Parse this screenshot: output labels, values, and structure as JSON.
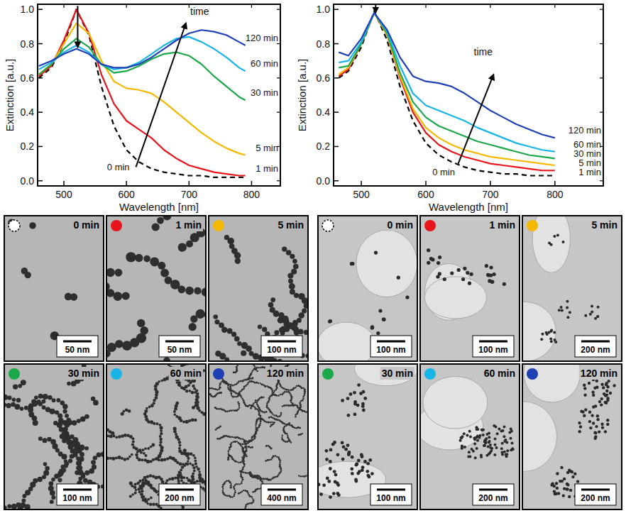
{
  "chart_data": [
    {
      "type": "line",
      "xlabel": "Wavelength [nm]",
      "ylabel": "Extinction [a.u.]",
      "xlim": [
        458,
        846
      ],
      "ylim": [
        -0.03,
        1.03
      ],
      "xticks": [
        500,
        600,
        700,
        800
      ],
      "yticks": [
        {
          "value": 0,
          "label": "0.0"
        },
        0.2,
        0.4,
        0.6,
        0.8,
        {
          "value": 1,
          "label": "1.0"
        }
      ],
      "annotations": [
        "time"
      ],
      "x": [
        460,
        480,
        500,
        520,
        540,
        560,
        580,
        600,
        620,
        640,
        660,
        680,
        700,
        720,
        740,
        760,
        780,
        790
      ],
      "series": [
        {
          "name": "0 min",
          "color": "#000000",
          "line_style": "dashed",
          "values": [
            0.6,
            0.66,
            0.8,
            1.0,
            0.85,
            0.55,
            0.32,
            0.18,
            0.11,
            0.07,
            0.05,
            0.04,
            0.03,
            0.03,
            0.02,
            0.02,
            0.02,
            0.02
          ]
        },
        {
          "name": "1 min",
          "color": "#e8141c",
          "line_style": "solid",
          "values": [
            0.61,
            0.67,
            0.82,
            1.0,
            0.86,
            0.62,
            0.45,
            0.35,
            0.3,
            0.25,
            0.18,
            0.13,
            0.09,
            0.07,
            0.05,
            0.04,
            0.03,
            0.03
          ]
        },
        {
          "name": "5 min",
          "color": "#f5b800",
          "line_style": "solid",
          "values": [
            0.62,
            0.68,
            0.8,
            0.92,
            0.86,
            0.7,
            0.58,
            0.54,
            0.53,
            0.51,
            0.46,
            0.4,
            0.34,
            0.28,
            0.23,
            0.19,
            0.16,
            0.15
          ]
        },
        {
          "name": "30 min",
          "color": "#1aa84a",
          "line_style": "solid",
          "values": [
            0.62,
            0.68,
            0.77,
            0.83,
            0.78,
            0.68,
            0.63,
            0.64,
            0.67,
            0.71,
            0.74,
            0.75,
            0.73,
            0.68,
            0.61,
            0.55,
            0.49,
            0.47
          ]
        },
        {
          "name": "60 min",
          "color": "#19b5e6",
          "line_style": "solid",
          "values": [
            0.65,
            0.69,
            0.75,
            0.79,
            0.75,
            0.68,
            0.65,
            0.66,
            0.69,
            0.74,
            0.79,
            0.83,
            0.84,
            0.81,
            0.77,
            0.72,
            0.66,
            0.64
          ]
        },
        {
          "name": "120 min",
          "color": "#1f3fb5",
          "line_style": "solid",
          "values": [
            0.67,
            0.7,
            0.74,
            0.77,
            0.74,
            0.68,
            0.66,
            0.66,
            0.68,
            0.72,
            0.77,
            0.82,
            0.86,
            0.88,
            0.87,
            0.85,
            0.81,
            0.79
          ]
        }
      ]
    },
    {
      "type": "line",
      "xlabel": "Wavelength [nm]",
      "ylabel": "Extinction [a.u.]",
      "xlim": [
        457,
        875
      ],
      "ylim": [
        -0.03,
        1.03
      ],
      "xticks": [
        500,
        600,
        700,
        800
      ],
      "yticks": [
        {
          "value": 0,
          "label": "0.0"
        },
        0.2,
        0.4,
        0.6,
        0.8,
        {
          "value": 1,
          "label": "1.0"
        }
      ],
      "annotations": [
        "time"
      ],
      "x": [
        465,
        480,
        500,
        520,
        540,
        560,
        580,
        600,
        620,
        640,
        660,
        680,
        700,
        720,
        740,
        760,
        780,
        800
      ],
      "series": [
        {
          "name": "0 min",
          "color": "#000000",
          "line_style": "dashed",
          "values": [
            0.6,
            0.64,
            0.78,
            0.99,
            0.82,
            0.55,
            0.35,
            0.22,
            0.15,
            0.11,
            0.08,
            0.06,
            0.05,
            0.04,
            0.04,
            0.03,
            0.03,
            0.03
          ]
        },
        {
          "name": "1 min",
          "color": "#e8141c",
          "line_style": "solid",
          "values": [
            0.61,
            0.65,
            0.8,
            0.98,
            0.85,
            0.6,
            0.4,
            0.28,
            0.21,
            0.17,
            0.14,
            0.12,
            0.1,
            0.09,
            0.08,
            0.07,
            0.06,
            0.06
          ]
        },
        {
          "name": "5 min",
          "color": "#f5b800",
          "line_style": "solid",
          "values": [
            0.62,
            0.66,
            0.8,
            0.98,
            0.85,
            0.61,
            0.42,
            0.31,
            0.25,
            0.21,
            0.18,
            0.16,
            0.14,
            0.13,
            0.12,
            0.11,
            0.1,
            0.09
          ]
        },
        {
          "name": "30 min",
          "color": "#1aa84a",
          "line_style": "solid",
          "values": [
            0.66,
            0.67,
            0.8,
            0.98,
            0.86,
            0.63,
            0.46,
            0.37,
            0.32,
            0.29,
            0.26,
            0.23,
            0.21,
            0.19,
            0.17,
            0.15,
            0.14,
            0.13
          ]
        },
        {
          "name": "60 min",
          "color": "#19b5e6",
          "line_style": "solid",
          "values": [
            0.69,
            0.7,
            0.81,
            0.98,
            0.87,
            0.67,
            0.51,
            0.44,
            0.41,
            0.38,
            0.35,
            0.31,
            0.28,
            0.25,
            0.22,
            0.2,
            0.18,
            0.17
          ]
        },
        {
          "name": "120 min",
          "color": "#1f3fb5",
          "line_style": "solid",
          "values": [
            0.75,
            0.73,
            0.83,
            0.98,
            0.88,
            0.72,
            0.61,
            0.58,
            0.57,
            0.55,
            0.51,
            0.46,
            0.41,
            0.37,
            0.33,
            0.3,
            0.27,
            0.25
          ]
        }
      ]
    }
  ],
  "micrographs": [
    {
      "panels": [
        {
          "time": "0 min",
          "scale_bar": "50 nm",
          "color": "#ffffff",
          "marker": "open"
        },
        {
          "time": "1 min",
          "scale_bar": "50 nm",
          "color": "#e8141c",
          "marker": "filled"
        },
        {
          "time": "5 min",
          "scale_bar": "100 nm",
          "color": "#f5b800",
          "marker": "filled"
        },
        {
          "time": "30 min",
          "scale_bar": "100 nm",
          "color": "#1aa84a",
          "marker": "filled"
        },
        {
          "time": "60 min",
          "scale_bar": "200 nm",
          "color": "#19b5e6",
          "marker": "filled"
        },
        {
          "time": "120 min",
          "scale_bar": "400 nm",
          "color": "#1f3fb5",
          "marker": "filled"
        }
      ]
    },
    {
      "panels": [
        {
          "time": "0 min",
          "scale_bar": "100 nm",
          "color": "#ffffff",
          "marker": "open"
        },
        {
          "time": "1 min",
          "scale_bar": "100 nm",
          "color": "#e8141c",
          "marker": "filled"
        },
        {
          "time": "5 min",
          "scale_bar": "200 nm",
          "color": "#f5b800",
          "marker": "filled"
        },
        {
          "time": "30 min",
          "scale_bar": "100 nm",
          "color": "#1aa84a",
          "marker": "filled"
        },
        {
          "time": "60 min",
          "scale_bar": "200 nm",
          "color": "#19b5e6",
          "marker": "filled"
        },
        {
          "time": "120 min",
          "scale_bar": "200 nm",
          "color": "#1f3fb5",
          "marker": "filled"
        }
      ]
    }
  ]
}
